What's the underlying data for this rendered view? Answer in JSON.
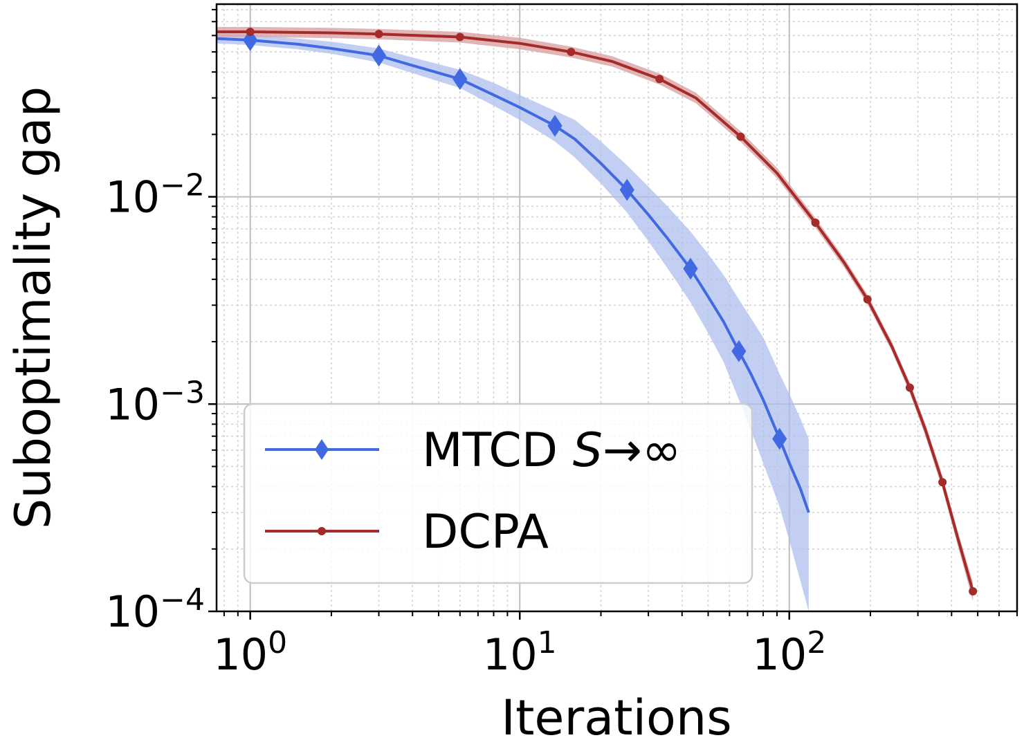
{
  "chart_data": {
    "type": "line",
    "title": "",
    "xlabel": "Iterations",
    "ylabel": "Suboptimality gap",
    "xscale": "log",
    "yscale": "log",
    "xlim": [
      0.75,
      700
    ],
    "ylim": [
      0.0001,
      0.085
    ],
    "grid": true,
    "legend_position": "lower-left",
    "x_ticks": [
      {
        "value": 1,
        "base": "10",
        "exp": "0"
      },
      {
        "value": 10,
        "base": "10",
        "exp": "1"
      },
      {
        "value": 100,
        "base": "10",
        "exp": "2"
      }
    ],
    "y_ticks": [
      {
        "value": 0.01,
        "base": "10",
        "exp": "−2"
      },
      {
        "value": 0.001,
        "base": "10",
        "exp": "−3"
      },
      {
        "value": 0.0001,
        "base": "10",
        "exp": "−4"
      }
    ],
    "series": [
      {
        "name": "MTCD S→∞",
        "label_main": "MTCD ",
        "label_italic": "S",
        "label_tail": "→∞",
        "color": "#4169e1",
        "band_color": "#aebfee",
        "marker": "diamond",
        "x": [
          0.75,
          1,
          1.5,
          2,
          3,
          4,
          6,
          8,
          10,
          13.5,
          16,
          20,
          25,
          30,
          35,
          43,
          50,
          57,
          65,
          72,
          80,
          92,
          100,
          110,
          118
        ],
        "y": [
          0.058,
          0.057,
          0.0545,
          0.052,
          0.048,
          0.043,
          0.037,
          0.031,
          0.027,
          0.022,
          0.019,
          0.0145,
          0.0108,
          0.0082,
          0.0064,
          0.0045,
          0.0033,
          0.0025,
          0.0018,
          0.0014,
          0.00105,
          0.00068,
          0.00052,
          0.00039,
          0.0003
        ],
        "lower": [
          0.055,
          0.054,
          0.0515,
          0.049,
          0.0445,
          0.0395,
          0.0335,
          0.0275,
          0.0235,
          0.0185,
          0.0155,
          0.0116,
          0.0084,
          0.0061,
          0.0046,
          0.0031,
          0.0022,
          0.0016,
          0.00105,
          0.00075,
          0.00052,
          0.00032,
          0.00022,
          0.00014,
          0.0001
        ],
        "upper": [
          0.061,
          0.0605,
          0.058,
          0.056,
          0.052,
          0.047,
          0.041,
          0.0355,
          0.031,
          0.026,
          0.0235,
          0.0185,
          0.0142,
          0.0112,
          0.0091,
          0.0068,
          0.0053,
          0.0042,
          0.0032,
          0.0026,
          0.0021,
          0.0014,
          0.00112,
          0.00085,
          0.00068
        ],
        "marker_x": [
          1,
          3,
          6,
          13.5,
          25,
          43,
          65,
          92
        ]
      },
      {
        "name": "DCPA",
        "label_main": "DCPA",
        "label_italic": "",
        "label_tail": "",
        "color": "#a52a2a",
        "band_color": "#d9a3a3",
        "marker": "circle",
        "x": [
          0.75,
          1,
          2,
          3,
          6,
          10,
          15.5,
          22,
          33,
          45,
          66,
          90,
          125,
          160,
          195,
          240,
          280,
          320,
          370,
          420,
          480
        ],
        "y": [
          0.0625,
          0.0625,
          0.0618,
          0.061,
          0.059,
          0.055,
          0.05,
          0.045,
          0.037,
          0.03,
          0.0195,
          0.013,
          0.0075,
          0.0048,
          0.0032,
          0.0019,
          0.0012,
          0.00075,
          0.00042,
          0.00023,
          0.000125
        ],
        "lower": [
          0.059,
          0.059,
          0.0583,
          0.0575,
          0.0555,
          0.0515,
          0.047,
          0.0425,
          0.0348,
          0.0283,
          0.0184,
          0.0123,
          0.0071,
          0.00455,
          0.00303,
          0.0018,
          0.00113,
          0.0007,
          0.00039,
          0.000212,
          0.000112
        ],
        "upper": [
          0.066,
          0.066,
          0.0653,
          0.0645,
          0.0625,
          0.0585,
          0.053,
          0.0477,
          0.0393,
          0.0318,
          0.0207,
          0.0138,
          0.0079,
          0.00505,
          0.00337,
          0.002,
          0.00127,
          0.0008,
          0.00045,
          0.000248,
          0.000138
        ],
        "marker_x": [
          1,
          3,
          6,
          15.5,
          33,
          66,
          125,
          195,
          280,
          370,
          480
        ]
      }
    ]
  }
}
